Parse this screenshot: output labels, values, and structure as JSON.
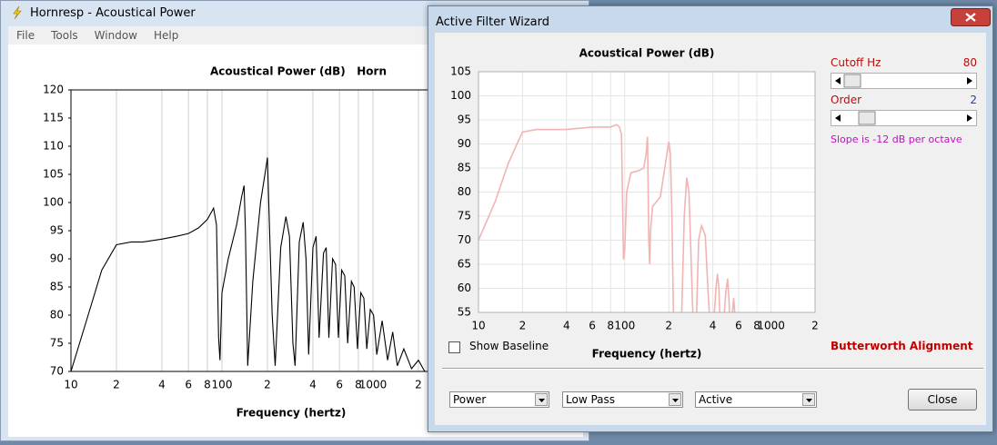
{
  "main_window": {
    "title": "Hornresp - Acoustical Power",
    "menu": [
      "File",
      "Tools",
      "Window",
      "Help"
    ],
    "chart": {
      "type": "line",
      "title": "Acoustical Power (dB)   Horn",
      "x_label": "Frequency (hertz)",
      "log_x": true,
      "grid": "x",
      "xlim": [
        10,
        20000
      ],
      "ylim": [
        70,
        120
      ],
      "xticks": [
        10,
        {
          "value": 20,
          "label": "2"
        },
        {
          "value": 40,
          "label": "4"
        },
        {
          "value": 60,
          "label": "6"
        },
        {
          "value": 80,
          "label": "8"
        },
        100,
        {
          "value": 200,
          "label": "2"
        },
        {
          "value": 400,
          "label": "4"
        },
        {
          "value": 600,
          "label": "6"
        },
        {
          "value": 800,
          "label": "8"
        },
        1000,
        {
          "value": 2000,
          "label": "2"
        }
      ],
      "yticks": [
        70,
        75,
        80,
        85,
        90,
        95,
        100,
        105,
        110,
        115,
        120
      ],
      "series": [
        {
          "color": "#000000",
          "x": [
            10,
            13,
            16,
            20,
            25,
            30,
            40,
            50,
            60,
            70,
            80,
            88,
            92,
            95,
            97,
            100,
            110,
            125,
            135,
            140,
            143,
            148,
            160,
            180,
            195,
            200,
            205,
            215,
            225,
            245,
            265,
            280,
            295,
            305,
            325,
            345,
            360,
            375,
            400,
            420,
            440,
            470,
            490,
            510,
            540,
            565,
            590,
            620,
            650,
            680,
            720,
            750,
            790,
            830,
            870,
            910,
            960,
            1010,
            1060,
            1150,
            1250,
            1350,
            1450,
            1600,
            1800,
            2000,
            2200
          ],
          "values": [
            70,
            80,
            88,
            92.5,
            93,
            93,
            93.5,
            94,
            94.5,
            95.5,
            97,
            99,
            96,
            76,
            72,
            84,
            90,
            96,
            101,
            103,
            95,
            71,
            86,
            100,
            106,
            108,
            98,
            80,
            71,
            92,
            97.5,
            94,
            75,
            71,
            93,
            96.5,
            90,
            73,
            92,
            94,
            76,
            91,
            92,
            76,
            90,
            89,
            76,
            88,
            87,
            75,
            86,
            85,
            74,
            84,
            83,
            74,
            81,
            80,
            73,
            79,
            72,
            77,
            71,
            74,
            70.5,
            72,
            70
          ]
        }
      ]
    }
  },
  "wizard": {
    "title": "Active Filter Wizard",
    "chart": {
      "type": "line",
      "title": "Acoustical Power (dB)",
      "x_label": "Frequency (hertz)",
      "log_x": true,
      "grid": "both",
      "xlim": [
        10,
        2000
      ],
      "ylim": [
        55,
        105
      ],
      "xticks": [
        10,
        {
          "value": 20,
          "label": "2"
        },
        {
          "value": 40,
          "label": "4"
        },
        {
          "value": 60,
          "label": "6"
        },
        {
          "value": 80,
          "label": "8"
        },
        100,
        {
          "value": 200,
          "label": "2"
        },
        {
          "value": 400,
          "label": "4"
        },
        {
          "value": 600,
          "label": "6"
        },
        {
          "value": 800,
          "label": "8"
        },
        1000,
        {
          "value": 2000,
          "label": "2"
        }
      ],
      "yticks": [
        55,
        60,
        65,
        70,
        75,
        80,
        85,
        90,
        95,
        100,
        105
      ],
      "series": [
        {
          "color": "#f2b3b3",
          "x": [
            10,
            13,
            16,
            20,
            25,
            40,
            60,
            80,
            88,
            92,
            95,
            98,
            100,
            103,
            110,
            125,
            135,
            140,
            143,
            146,
            148,
            150,
            155,
            175,
            190,
            200,
            205,
            210,
            215,
            null,
            245,
            255,
            265,
            275,
            285,
            292,
            null,
            310,
            320,
            335,
            355,
            370,
            378,
            null,
            410,
            420,
            430,
            440,
            445,
            null,
            480,
            490,
            505,
            515,
            520,
            null,
            545,
            555,
            565
          ],
          "values": [
            70,
            78,
            86,
            92.5,
            93,
            93,
            93.5,
            93.5,
            94,
            93.5,
            92,
            66,
            68,
            80,
            84,
            84.5,
            85,
            88,
            91.5,
            70,
            65,
            72,
            77,
            79,
            86,
            90.5,
            88,
            75,
            55,
            null,
            55,
            75,
            83,
            80,
            65,
            55,
            null,
            55,
            70,
            73,
            71,
            60,
            55,
            null,
            55,
            60,
            63,
            60,
            55,
            null,
            55,
            59,
            62,
            58,
            55,
            null,
            55,
            58,
            55
          ]
        }
      ]
    },
    "cutoff": {
      "label": "Cutoff  Hz",
      "value": 80
    },
    "order": {
      "label": "Order",
      "value": 2
    },
    "slope": "Slope is -12 dB per octave",
    "show_baseline": "Show Baseline",
    "alignment": "Butterworth Alignment",
    "dropdowns": [
      "Power",
      "Low Pass",
      "Active"
    ],
    "close": "Close"
  }
}
